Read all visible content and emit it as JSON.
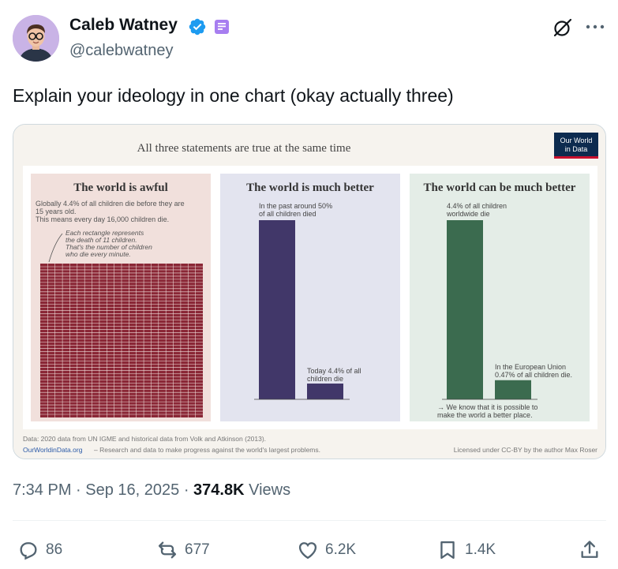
{
  "author": {
    "name": "Caleb Watney",
    "handle": "@calebwatney"
  },
  "icons": {
    "verified": "verified-badge-icon",
    "subscription": "subscription-badge-icon",
    "grok": "grok-icon",
    "more": "more-icon",
    "reply": "reply-icon",
    "repost": "repost-icon",
    "like": "like-icon",
    "bookmark": "bookmark-icon",
    "share": "share-icon"
  },
  "colors": {
    "verified": "#1d9bf0",
    "text": "#0f1419",
    "muted": "#536471",
    "panel_awful": "#f1e0dc",
    "panel_better": "#e3e4ef",
    "panel_can_better": "#e4ede7",
    "bar_purple": "#413769",
    "bar_green": "#3b6b4f",
    "grid_red": "#8a2736"
  },
  "tweet": {
    "text": "Explain your ideology in one chart (okay actually three)",
    "time": "7:34 PM",
    "date": "Sep 16, 2025",
    "views": "374.8K",
    "views_label": "Views"
  },
  "figure": {
    "headline": "All three statements are true at the same time",
    "logo_line1": "Our World",
    "logo_line2": "in Data",
    "panel1": {
      "title": "The world is awful",
      "text1": "Globally 4.4% of all children die before they are",
      "text2": "15 years old.",
      "text3": "This means every day 16,000 children die.",
      "note1": "Each rectangle represents",
      "note2": "the death of 11 children.",
      "note3": "That's the number of children",
      "note4": "who die every minute."
    },
    "panel2": {
      "title": "The world is much better",
      "label_past1": "In the past around 50%",
      "label_past2": "of all children died",
      "label_today1": "Today 4.4% of all",
      "label_today2": "children die"
    },
    "panel3": {
      "title": "The world can be much better",
      "label_world1": "4.4% of all children",
      "label_world2": "worldwide die",
      "label_eu1": "In the European Union",
      "label_eu2": "0.47% of all children die.",
      "note1": "→ We know that it is possible to",
      "note2": "make the world a better place."
    },
    "source": "Data: 2020 data from UN IGME and historical data from Volk and Atkinson (2013).",
    "site": "OurWorldinData.org",
    "site_tagline": " – Research and data to make progress against the world's largest problems.",
    "license": "Licensed under CC-BY by the author Max Roser"
  },
  "chart_data": [
    {
      "type": "bar",
      "title": "The world is much better",
      "categories": [
        "In the past",
        "Today"
      ],
      "values": [
        50,
        4.4
      ],
      "ylabel": "",
      "ylim": [
        0,
        50
      ]
    },
    {
      "type": "bar",
      "title": "The world can be much better",
      "categories": [
        "Worldwide",
        "European Union"
      ],
      "values": [
        4.4,
        0.47
      ],
      "ylabel": "",
      "ylim": [
        0,
        4.4
      ]
    }
  ],
  "actions": {
    "replies": "86",
    "reposts": "677",
    "likes": "6.2K",
    "bookmarks": "1.4K"
  }
}
